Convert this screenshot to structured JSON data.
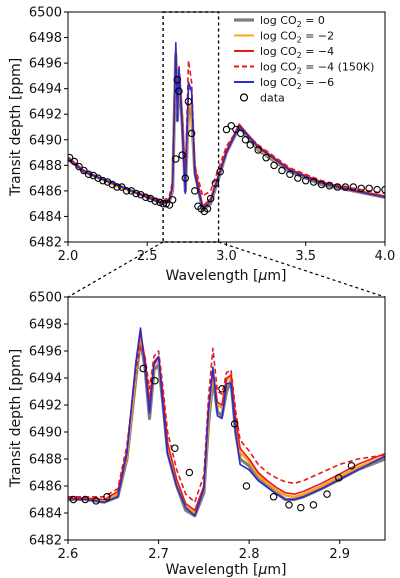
{
  "chart_data": [
    {
      "type": "line",
      "xlabel_pre": "Wavelength [",
      "xlabel_sym": "μ",
      "xlabel_post": "m]",
      "ylabel": "Transit depth [ppm]",
      "xlim": [
        2.0,
        4.0
      ],
      "ylim": [
        6482,
        6500
      ],
      "xticks": [
        "2.0",
        "2.5",
        "3.0",
        "3.5",
        "4.0"
      ],
      "yticks": [
        "6482",
        "6484",
        "6486",
        "6488",
        "6490",
        "6492",
        "6494",
        "6496",
        "6498",
        "6500"
      ],
      "zoom_box_x": [
        2.6,
        2.95
      ],
      "legend": {
        "placement": "top-right"
      },
      "series": [
        {
          "name": "log CO$_2 = 0$",
          "label_pre": "log CO",
          "label_sub": "2",
          "label_post": " = 0",
          "color": "#7f7f7f",
          "style": "solid",
          "x": [
            2.0,
            2.1,
            2.2,
            2.3,
            2.4,
            2.5,
            2.6,
            2.64,
            2.66,
            2.68,
            2.69,
            2.7,
            2.72,
            2.74,
            2.76,
            2.78,
            2.8,
            2.85,
            2.9,
            3.0,
            3.08,
            3.2,
            3.4,
            3.6,
            3.8,
            4.0
          ],
          "y": [
            6488.6,
            6487.5,
            6487.0,
            6486.5,
            6486.0,
            6485.5,
            6485.0,
            6485.2,
            6486.0,
            6496.6,
            6491.5,
            6495.0,
            6491.5,
            6486.0,
            6492.5,
            6492.0,
            6487.5,
            6484.5,
            6485.0,
            6489.0,
            6491.0,
            6489.2,
            6487.5,
            6486.5,
            6486.0,
            6485.5
          ]
        },
        {
          "name": "log CO$_2 = -2$",
          "label_pre": "log CO",
          "label_sub": "2",
          "label_post": " = −2",
          "color": "#ff9f1c",
          "style": "solid",
          "x": [
            2.0,
            2.1,
            2.2,
            2.3,
            2.4,
            2.5,
            2.6,
            2.64,
            2.66,
            2.68,
            2.69,
            2.7,
            2.72,
            2.74,
            2.76,
            2.78,
            2.8,
            2.85,
            2.9,
            3.0,
            3.08,
            3.2,
            3.4,
            3.6,
            3.8,
            4.0
          ],
          "y": [
            6488.5,
            6487.5,
            6487.0,
            6486.4,
            6486.0,
            6485.5,
            6485.0,
            6485.2,
            6486.2,
            6496.8,
            6492.0,
            6495.2,
            6491.5,
            6486.2,
            6492.8,
            6492.5,
            6487.5,
            6484.7,
            6485.2,
            6489.0,
            6491.2,
            6489.3,
            6487.6,
            6486.6,
            6486.0,
            6485.5
          ]
        },
        {
          "name": "log CO$_2 = -4$",
          "label_pre": "log CO",
          "label_sub": "2",
          "label_post": " = −4",
          "color": "#e41a1c",
          "style": "solid",
          "x": [
            2.0,
            2.1,
            2.2,
            2.3,
            2.4,
            2.5,
            2.6,
            2.64,
            2.66,
            2.68,
            2.69,
            2.7,
            2.72,
            2.74,
            2.76,
            2.78,
            2.8,
            2.85,
            2.9,
            3.0,
            3.08,
            3.2,
            3.4,
            3.6,
            3.8,
            4.0
          ],
          "y": [
            6488.6,
            6487.6,
            6487.0,
            6486.5,
            6486.0,
            6485.6,
            6485.1,
            6485.4,
            6486.5,
            6497.2,
            6492.5,
            6495.5,
            6491.8,
            6486.5,
            6494.0,
            6494.0,
            6487.8,
            6484.8,
            6485.4,
            6489.2,
            6491.2,
            6489.5,
            6487.7,
            6486.7,
            6486.1,
            6485.6
          ]
        },
        {
          "name": "log CO$_2 = -4$ (150K)",
          "label_pre": "log CO",
          "label_sub": "2",
          "label_post": " = −4 (150K)",
          "color": "#e41a1c",
          "style": "dashed",
          "x": [
            2.0,
            2.1,
            2.2,
            2.3,
            2.4,
            2.5,
            2.6,
            2.64,
            2.66,
            2.68,
            2.69,
            2.7,
            2.72,
            2.74,
            2.76,
            2.78,
            2.8,
            2.85,
            2.9,
            3.0,
            3.08,
            3.2,
            3.4,
            3.6,
            3.8,
            4.0
          ],
          "y": [
            6488.4,
            6487.5,
            6487.0,
            6486.5,
            6486.0,
            6485.6,
            6485.2,
            6485.6,
            6486.8,
            6496.0,
            6493.0,
            6495.8,
            6492.0,
            6487.0,
            6496.2,
            6494.5,
            6488.0,
            6485.6,
            6486.0,
            6489.5,
            6491.0,
            6489.6,
            6487.8,
            6486.8,
            6486.2,
            6485.8
          ]
        },
        {
          "name": "log CO$_2 = -6$",
          "label_pre": "log CO",
          "label_sub": "2",
          "label_post": " = −6",
          "color": "#2b2bcc",
          "style": "solid",
          "x": [
            2.0,
            2.1,
            2.2,
            2.3,
            2.4,
            2.5,
            2.6,
            2.64,
            2.66,
            2.68,
            2.69,
            2.7,
            2.72,
            2.74,
            2.76,
            2.78,
            2.8,
            2.85,
            2.9,
            3.0,
            3.08,
            3.2,
            3.4,
            3.6,
            3.8,
            4.0
          ],
          "y": [
            6488.5,
            6487.5,
            6487.0,
            6486.5,
            6486.0,
            6485.5,
            6485.0,
            6485.3,
            6486.3,
            6497.6,
            6491.5,
            6495.6,
            6491.0,
            6485.8,
            6494.5,
            6493.8,
            6487.3,
            6484.6,
            6485.2,
            6489.0,
            6491.1,
            6489.4,
            6487.6,
            6486.6,
            6486.0,
            6485.5
          ]
        },
        {
          "name": "data",
          "label_pre": "data",
          "label_sub": "",
          "label_post": "",
          "color": "#000000",
          "style": "markers",
          "x": [
            2.01,
            2.04,
            2.07,
            2.1,
            2.13,
            2.16,
            2.19,
            2.22,
            2.25,
            2.28,
            2.31,
            2.34,
            2.37,
            2.4,
            2.43,
            2.46,
            2.49,
            2.52,
            2.55,
            2.58,
            2.6,
            2.62,
            2.64,
            2.66,
            2.68,
            2.69,
            2.7,
            2.72,
            2.74,
            2.76,
            2.78,
            2.8,
            2.82,
            2.84,
            2.86,
            2.88,
            2.9,
            2.93,
            2.96,
            3.0,
            3.03,
            3.06,
            3.09,
            3.12,
            3.15,
            3.2,
            3.25,
            3.3,
            3.35,
            3.4,
            3.45,
            3.5,
            3.55,
            3.6,
            3.65,
            3.7,
            3.75,
            3.8,
            3.85,
            3.9,
            3.95,
            4.0
          ],
          "y": [
            6488.6,
            6488.3,
            6487.9,
            6487.6,
            6487.3,
            6487.2,
            6487.0,
            6486.8,
            6486.7,
            6486.5,
            6486.3,
            6486.3,
            6486.0,
            6486.0,
            6485.8,
            6485.7,
            6485.5,
            6485.4,
            6485.2,
            6485.1,
            6485.0,
            6485.0,
            6484.9,
            6485.3,
            6488.5,
            6494.7,
            6493.8,
            6488.8,
            6487.0,
            6493.0,
            6490.5,
            6486.0,
            6484.8,
            6484.6,
            6484.4,
            6484.6,
            6485.4,
            6486.6,
            6487.5,
            6490.8,
            6491.1,
            6490.8,
            6490.5,
            6490.0,
            6489.6,
            6489.2,
            6488.6,
            6488.0,
            6487.6,
            6487.3,
            6487.0,
            6486.8,
            6486.7,
            6486.5,
            6486.4,
            6486.3,
            6486.3,
            6486.3,
            6486.2,
            6486.2,
            6486.1,
            6486.1
          ]
        }
      ]
    },
    {
      "type": "line",
      "xlabel_pre": "Wavelength [",
      "xlabel_sym": "μ",
      "xlabel_post": "m]",
      "ylabel": "Transit depth [ppm]",
      "xlim": [
        2.6,
        2.95
      ],
      "ylim": [
        6482,
        6500
      ],
      "xticks": [
        "2.6",
        "2.7",
        "2.8",
        "2.9"
      ],
      "yticks": [
        "6482",
        "6484",
        "6486",
        "6488",
        "6490",
        "6492",
        "6494",
        "6496",
        "6498",
        "6500"
      ],
      "series": [
        {
          "name": "log CO$_2 = 0$",
          "color": "#7f7f7f",
          "style": "solid",
          "x": [
            2.6,
            2.62,
            2.64,
            2.655,
            2.665,
            2.675,
            2.68,
            2.685,
            2.69,
            2.695,
            2.7,
            2.705,
            2.71,
            2.72,
            2.73,
            2.74,
            2.75,
            2.755,
            2.76,
            2.765,
            2.77,
            2.775,
            2.78,
            2.785,
            2.79,
            2.8,
            2.81,
            2.82,
            2.83,
            2.84,
            2.85,
            2.86,
            2.88,
            2.9,
            2.92,
            2.95
          ],
          "y": [
            6485.0,
            6485.0,
            6484.8,
            6485.2,
            6488.0,
            6494.0,
            6496.8,
            6494.8,
            6491.0,
            6494.6,
            6495.0,
            6492.0,
            6488.5,
            6486.0,
            6484.2,
            6483.8,
            6485.5,
            6490.5,
            6494.0,
            6491.5,
            6491.2,
            6493.0,
            6493.8,
            6490.0,
            6488.0,
            6487.5,
            6486.5,
            6486.0,
            6485.5,
            6485.0,
            6485.0,
            6485.2,
            6485.8,
            6486.5,
            6487.2,
            6488.0
          ]
        },
        {
          "name": "log CO$_2 = -2$",
          "color": "#ff9f1c",
          "style": "solid",
          "x": [
            2.6,
            2.62,
            2.64,
            2.655,
            2.665,
            2.675,
            2.68,
            2.685,
            2.69,
            2.695,
            2.7,
            2.705,
            2.71,
            2.72,
            2.73,
            2.74,
            2.75,
            2.755,
            2.76,
            2.765,
            2.77,
            2.775,
            2.78,
            2.785,
            2.79,
            2.8,
            2.81,
            2.82,
            2.83,
            2.84,
            2.85,
            2.86,
            2.88,
            2.9,
            2.92,
            2.95
          ],
          "y": [
            6485.0,
            6485.0,
            6484.9,
            6485.4,
            6488.2,
            6494.5,
            6497.2,
            6495.2,
            6491.8,
            6495.0,
            6495.4,
            6492.3,
            6489.0,
            6486.3,
            6484.5,
            6484.0,
            6485.8,
            6491.0,
            6494.4,
            6492.0,
            6491.8,
            6493.8,
            6494.2,
            6490.8,
            6488.5,
            6487.8,
            6486.8,
            6486.2,
            6485.7,
            6485.3,
            6485.2,
            6485.4,
            6486.0,
            6486.7,
            6487.4,
            6488.2
          ]
        },
        {
          "name": "log CO$_2 = -4$",
          "color": "#e41a1c",
          "style": "solid",
          "x": [
            2.6,
            2.62,
            2.64,
            2.655,
            2.665,
            2.675,
            2.68,
            2.685,
            2.69,
            2.695,
            2.7,
            2.705,
            2.71,
            2.72,
            2.73,
            2.74,
            2.75,
            2.755,
            2.76,
            2.765,
            2.77,
            2.775,
            2.78,
            2.785,
            2.79,
            2.8,
            2.81,
            2.82,
            2.83,
            2.84,
            2.85,
            2.86,
            2.88,
            2.9,
            2.92,
            2.95
          ],
          "y": [
            6485.1,
            6485.1,
            6485.0,
            6485.6,
            6488.6,
            6495.0,
            6497.4,
            6495.4,
            6492.2,
            6495.2,
            6495.6,
            6492.6,
            6489.2,
            6486.5,
            6484.7,
            6484.2,
            6486.0,
            6491.8,
            6494.6,
            6492.2,
            6492.0,
            6494.0,
            6494.2,
            6491.0,
            6488.8,
            6488.0,
            6487.0,
            6486.4,
            6485.9,
            6485.5,
            6485.4,
            6485.6,
            6486.2,
            6486.9,
            6487.6,
            6488.4
          ]
        },
        {
          "name": "log CO$_2 = -4$ (150K)",
          "color": "#e41a1c",
          "style": "dashed",
          "x": [
            2.6,
            2.62,
            2.64,
            2.655,
            2.665,
            2.675,
            2.68,
            2.685,
            2.69,
            2.695,
            2.7,
            2.705,
            2.71,
            2.72,
            2.73,
            2.74,
            2.75,
            2.755,
            2.76,
            2.765,
            2.77,
            2.775,
            2.78,
            2.785,
            2.79,
            2.8,
            2.81,
            2.82,
            2.83,
            2.84,
            2.85,
            2.86,
            2.88,
            2.9,
            2.92,
            2.95
          ],
          "y": [
            6485.2,
            6485.2,
            6485.2,
            6485.8,
            6489.0,
            6494.6,
            6496.4,
            6495.6,
            6493.2,
            6495.6,
            6496.0,
            6493.2,
            6490.0,
            6487.2,
            6485.4,
            6484.8,
            6486.8,
            6492.5,
            6496.2,
            6493.0,
            6492.8,
            6494.4,
            6494.6,
            6491.6,
            6489.4,
            6488.6,
            6487.6,
            6487.0,
            6486.6,
            6486.3,
            6486.2,
            6486.4,
            6487.0,
            6487.6,
            6488.0,
            6488.3
          ]
        },
        {
          "name": "log CO$_2 = -6$",
          "color": "#2b2bcc",
          "style": "solid",
          "x": [
            2.6,
            2.62,
            2.64,
            2.655,
            2.665,
            2.675,
            2.68,
            2.685,
            2.69,
            2.695,
            2.7,
            2.705,
            2.71,
            2.72,
            2.73,
            2.74,
            2.75,
            2.755,
            2.76,
            2.765,
            2.77,
            2.775,
            2.78,
            2.785,
            2.79,
            2.8,
            2.81,
            2.82,
            2.83,
            2.84,
            2.85,
            2.86,
            2.88,
            2.9,
            2.92,
            2.95
          ],
          "y": [
            6485.0,
            6485.0,
            6484.8,
            6485.2,
            6488.4,
            6495.2,
            6497.7,
            6494.8,
            6491.4,
            6495.0,
            6495.6,
            6491.8,
            6488.4,
            6486.0,
            6484.4,
            6483.8,
            6485.8,
            6491.4,
            6494.8,
            6491.2,
            6491.0,
            6493.6,
            6493.6,
            6490.0,
            6487.6,
            6487.2,
            6486.4,
            6485.9,
            6485.4,
            6485.0,
            6485.0,
            6485.2,
            6485.8,
            6486.5,
            6487.2,
            6488.2
          ]
        },
        {
          "name": "data",
          "color": "#000000",
          "style": "markers",
          "x": [
            2.606,
            2.619,
            2.631,
            2.643,
            2.683,
            2.696,
            2.718,
            2.734,
            2.77,
            2.784,
            2.797,
            2.827,
            2.844,
            2.857,
            2.871,
            2.886,
            2.899,
            2.913
          ],
          "y": [
            6485.0,
            6485.0,
            6484.9,
            6485.2,
            6494.7,
            6493.8,
            6488.8,
            6487.0,
            6493.2,
            6490.6,
            6486.0,
            6485.2,
            6484.6,
            6484.4,
            6484.6,
            6485.4,
            6486.6,
            6487.5
          ]
        }
      ]
    }
  ]
}
